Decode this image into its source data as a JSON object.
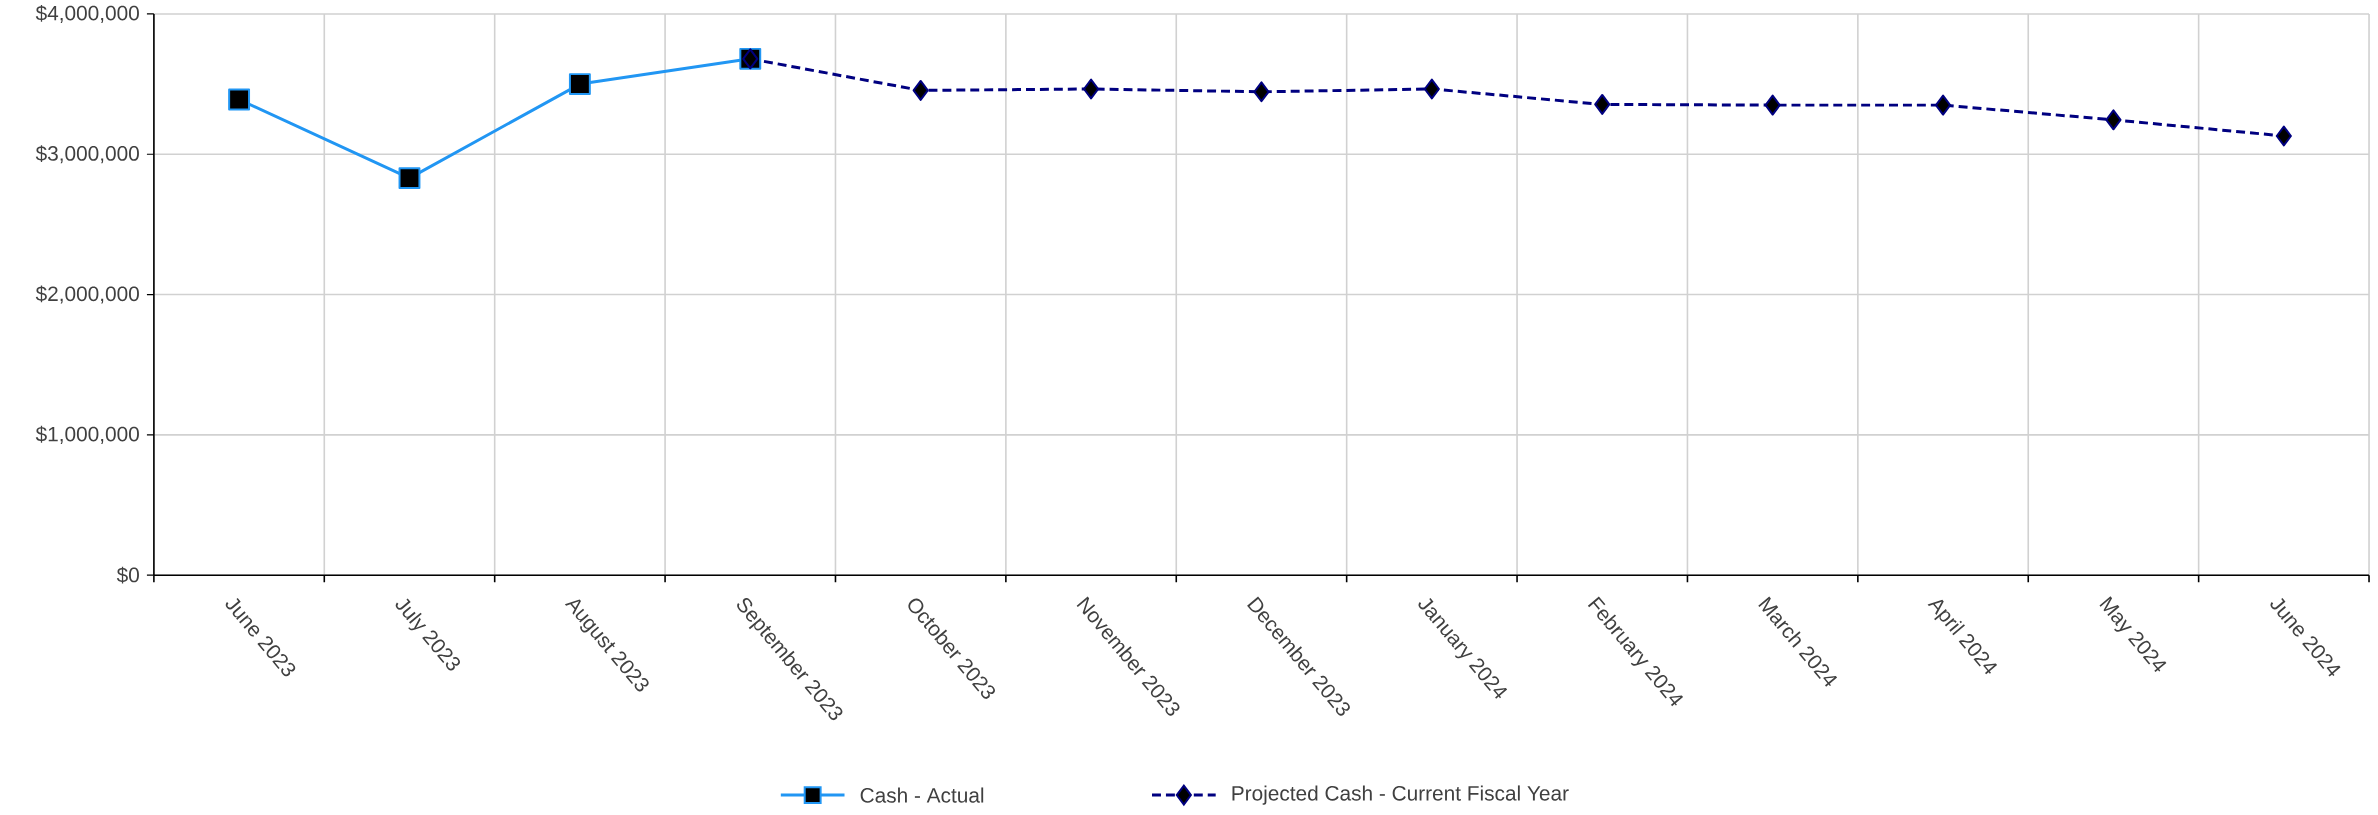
{
  "chart_data": {
    "type": "line",
    "categories": [
      "June 2023",
      "July 2023",
      "August 2023",
      "September 2023",
      "October 2023",
      "November 2023",
      "December 2023",
      "January 2024",
      "February 2024",
      "March 2024",
      "April 2024",
      "May 2024",
      "June 2024"
    ],
    "series": [
      {
        "name": "Cash - Actual",
        "color": "#2196f3",
        "marker": "square",
        "line_style": "solid",
        "values": [
          3390000,
          2830000,
          3500000,
          3680000,
          null,
          null,
          null,
          null,
          null,
          null,
          null,
          null,
          null
        ]
      },
      {
        "name": "Projected Cash - Current Fiscal Year",
        "color": "#000080",
        "marker": "diamond",
        "line_style": "dashed",
        "values": [
          null,
          null,
          null,
          3680000,
          3455000,
          3465000,
          3445000,
          3465000,
          3355000,
          3350000,
          3350000,
          3245000,
          3130000
        ]
      }
    ],
    "ylim": [
      0,
      4000000
    ],
    "yticks": [
      {
        "value": 0,
        "label": "$0"
      },
      {
        "value": 1000000,
        "label": "$1,000,000"
      },
      {
        "value": 2000000,
        "label": "$2,000,000"
      },
      {
        "value": 3000000,
        "label": "$3,000,000"
      },
      {
        "value": 4000000,
        "label": "$4,000,000"
      }
    ],
    "grid": true,
    "legend": "bottom"
  }
}
